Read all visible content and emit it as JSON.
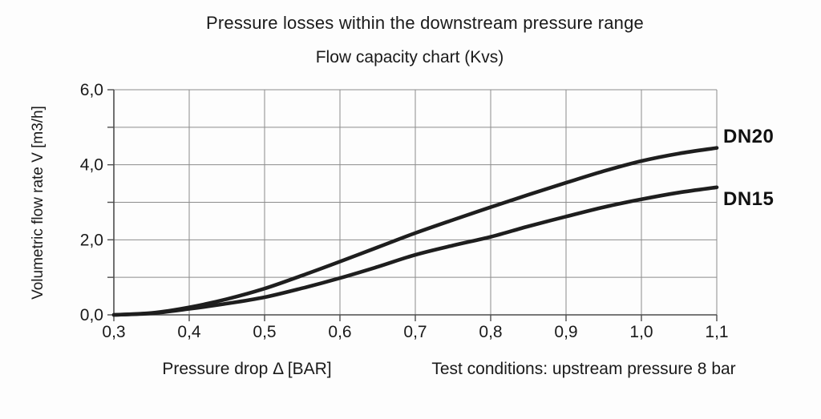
{
  "page": {
    "title": "Pressure losses within the downstream pressure range",
    "subtitle": "Flow capacity chart (Kvs)"
  },
  "chart_data": {
    "type": "line",
    "title": "Pressure losses within the downstream pressure range",
    "subtitle": "Flow capacity chart (Kvs)",
    "xlabel": "Pressure drop Δ [BAR]",
    "ylabel": "Volumetric flow rate V [m3/h]",
    "note": "Test conditions: upstream pressure 8 bar",
    "xlim": [
      0.3,
      1.1
    ],
    "ylim": [
      0,
      6
    ],
    "grid": true,
    "x_ticks": [
      0.3,
      0.4,
      0.5,
      0.6,
      0.7,
      0.8,
      0.9,
      1.0,
      1.1
    ],
    "x_tick_labels": [
      "0,3",
      "0,4",
      "0,5",
      "0,6",
      "0,7",
      "0,8",
      "0,9",
      "1,0",
      "1,1"
    ],
    "y_ticks": [
      0,
      1,
      2,
      3,
      4,
      5,
      6
    ],
    "y_tick_labels": [
      "0,0",
      "",
      "2,0",
      "",
      "4,0",
      "",
      "6,0"
    ],
    "legend_position": "right-of-plot",
    "x": [
      0.3,
      0.35,
      0.4,
      0.45,
      0.5,
      0.55,
      0.6,
      0.65,
      0.7,
      0.75,
      0.8,
      0.85,
      0.9,
      0.95,
      1.0,
      1.05,
      1.1
    ],
    "series": [
      {
        "name": "DN20",
        "values": [
          0.0,
          0.05,
          0.2,
          0.42,
          0.7,
          1.05,
          1.42,
          1.8,
          2.18,
          2.53,
          2.87,
          3.2,
          3.52,
          3.83,
          4.1,
          4.3,
          4.45
        ]
      },
      {
        "name": "DN15",
        "values": [
          0.0,
          0.04,
          0.16,
          0.3,
          0.47,
          0.71,
          0.98,
          1.28,
          1.6,
          1.85,
          2.08,
          2.36,
          2.62,
          2.87,
          3.08,
          3.26,
          3.4
        ]
      }
    ]
  },
  "colors": {
    "background": "#fdfdfd",
    "text": "#1a1a1a",
    "gridline": "#8c8c8c",
    "axis": "#4d4d4d",
    "curve": "#1e1e1e"
  }
}
